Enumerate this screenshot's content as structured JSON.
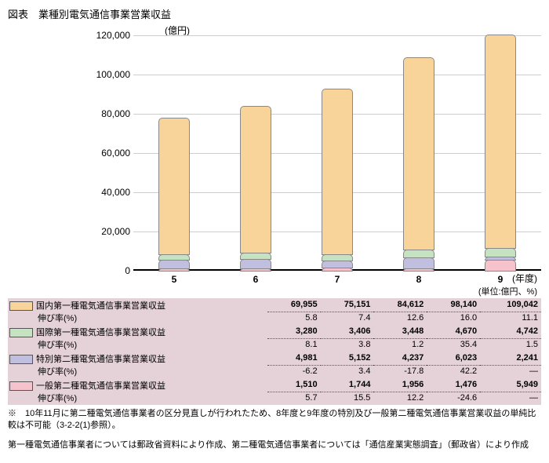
{
  "title": "図表　業種別電気通信事業営業収益",
  "unit_top": "(億円)",
  "x_axis_suffix": "(年度)",
  "x_unit_label": "(単位:億円、%)",
  "chart": {
    "categories": [
      "5",
      "6",
      "7",
      "8",
      "9"
    ],
    "ylim": [
      0,
      120000
    ],
    "ytick_step": 20000,
    "yticks": [
      "0",
      "20,000",
      "40,000",
      "60,000",
      "80,000",
      "100,000",
      "120,000"
    ],
    "grid_color": "#d1cbd6",
    "series": [
      {
        "key": "dom1",
        "label": "国内第一種電気通信事業営業収益",
        "rate_label": "伸び率(%)",
        "color": "#f8d49a",
        "values": [
          69955,
          75151,
          84612,
          98140,
          109042
        ],
        "values_fmt": [
          "69,955",
          "75,151",
          "84,612",
          "98,140",
          "109,042"
        ],
        "rates": [
          "5.8",
          "7.4",
          "12.6",
          "16.0",
          "11.1"
        ]
      },
      {
        "key": "intl1",
        "label": "国際第一種電気通信事業営業収益",
        "rate_label": "伸び率(%)",
        "color": "#c5e3c0",
        "values": [
          3280,
          3406,
          3448,
          4670,
          4742
        ],
        "values_fmt": [
          "3,280",
          "3,406",
          "3,448",
          "4,670",
          "4,742"
        ],
        "rates": [
          "8.1",
          "3.8",
          "1.2",
          "35.4",
          "1.5"
        ]
      },
      {
        "key": "sp2",
        "label": "特別第二種電気通信事業営業収益",
        "rate_label": "伸び率(%)",
        "color": "#c1bfe0",
        "values": [
          4981,
          5152,
          4237,
          6023,
          2241
        ],
        "values_fmt": [
          "4,981",
          "5,152",
          "4,237",
          "6,023",
          "2,241"
        ],
        "rates": [
          "-6.2",
          "3.4",
          "-17.8",
          "42.2",
          "―"
        ]
      },
      {
        "key": "gen2",
        "label": "一般第二種電気通信事業営業収益",
        "rate_label": "伸び率(%)",
        "color": "#f6c2cc",
        "values": [
          1510,
          1744,
          1956,
          1476,
          5949
        ],
        "values_fmt": [
          "1,510",
          "1,744",
          "1,956",
          "1,476",
          "5,949"
        ],
        "rates": [
          "5.7",
          "15.5",
          "12.2",
          "-24.6",
          "―"
        ]
      }
    ]
  },
  "footnote1": "※　10年11月に第二種電気通信事業者の区分見直しが行われたため、8年度と9年度の特別及び一般第二種電気通信事業営業収益の単純比較は不可能（3-2-2(1)参照）。",
  "footnote2": "第一種電気通信事業者については郵政省資料により作成、第二種電気通信事業者については「通信産業実態調査」（郵政省）により作成"
}
